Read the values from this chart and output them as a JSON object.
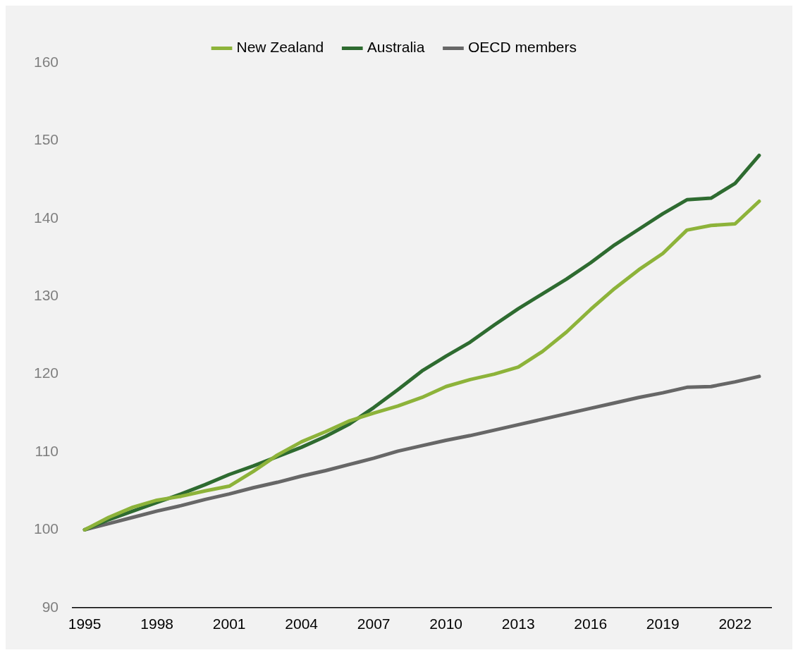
{
  "chart_data": {
    "type": "line",
    "categories": [
      "1995",
      null,
      null,
      "1998",
      null,
      null,
      "2001",
      null,
      null,
      "2004",
      null,
      null,
      "2007",
      null,
      null,
      "2010",
      null,
      null,
      "2013",
      null,
      null,
      "2016",
      null,
      null,
      "2019",
      null,
      null,
      "2022",
      null
    ],
    "series": [
      {
        "name": "New Zealand",
        "color": "#8db33a",
        "values": [
          100,
          101.6,
          102.9,
          103.8,
          104.3,
          105.0,
          105.6,
          107.5,
          109.6,
          111.3,
          112.6,
          114.0,
          115.0,
          115.9,
          117.0,
          118.4,
          119.3,
          120.0,
          120.9,
          122.9,
          125.4,
          128.3,
          131.0,
          133.4,
          135.5,
          138.5,
          139.1,
          139.3,
          142.2
        ]
      },
      {
        "name": "Australia",
        "color": "#2e6b30",
        "values": [
          100,
          101.3,
          102.4,
          103.5,
          104.6,
          105.8,
          107.1,
          108.2,
          109.4,
          110.6,
          112.0,
          113.6,
          115.7,
          118.0,
          120.4,
          122.3,
          124.1,
          126.3,
          128.4,
          130.3,
          132.2,
          134.3,
          136.6,
          138.6,
          140.6,
          142.4,
          142.6,
          144.5,
          148.1
        ]
      },
      {
        "name": "OECD members",
        "color": "#676767",
        "values": [
          100,
          100.8,
          101.6,
          102.4,
          103.1,
          103.9,
          104.6,
          105.4,
          106.1,
          106.9,
          107.6,
          108.4,
          109.2,
          110.1,
          110.8,
          111.5,
          112.1,
          112.8,
          113.5,
          114.2,
          114.9,
          115.6,
          116.3,
          117.0,
          117.6,
          118.3,
          118.4,
          119.0,
          119.7
        ]
      }
    ],
    "ylim": [
      90,
      160
    ],
    "yticks": [
      90,
      100,
      110,
      120,
      130,
      140,
      150,
      160
    ],
    "grid": false,
    "legend": "top",
    "marker": "none",
    "line_style": "solid"
  }
}
